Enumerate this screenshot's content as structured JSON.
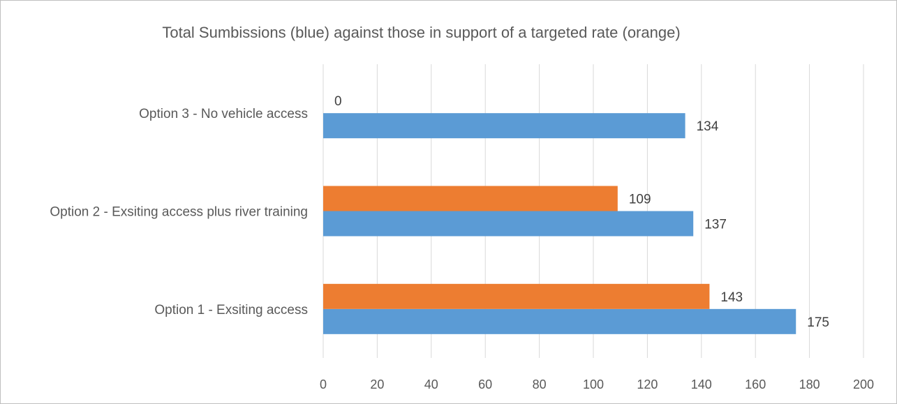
{
  "chart_data": {
    "type": "bar",
    "orientation": "horizontal",
    "title": "Total Sumbissions (blue) against those in support of a targeted rate (orange)",
    "categories": [
      "Option 1 - Exsiting access",
      "Option 2 - Exsiting access plus river training",
      "Option 3 - No vehicle access"
    ],
    "series": [
      {
        "values": [
          175,
          137,
          134
        ],
        "color": "#5b9bd5"
      },
      {
        "values": [
          143,
          109,
          0
        ],
        "color": "#ed7d31"
      }
    ],
    "xlim": [
      0,
      200
    ],
    "xticks": [
      0,
      20,
      40,
      60,
      80,
      100,
      120,
      140,
      160,
      180,
      200
    ],
    "grid": true,
    "legend": "none",
    "data_labels": true
  }
}
